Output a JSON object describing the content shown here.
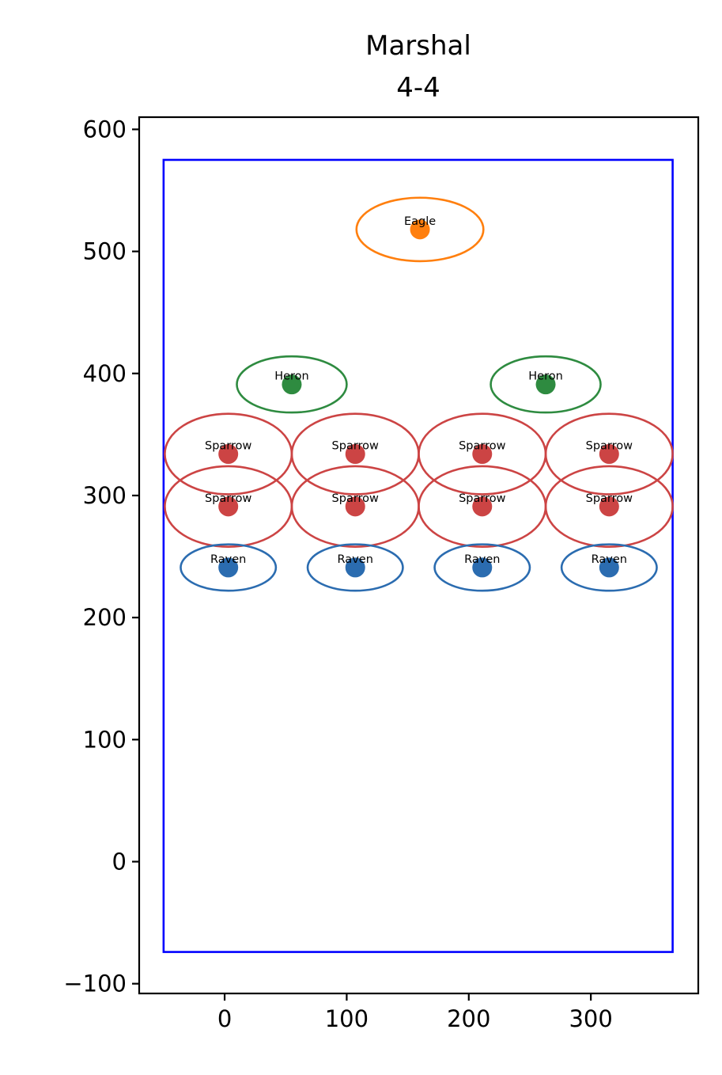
{
  "chart_data": {
    "type": "scatter",
    "title": "Marshal",
    "subtitle": "4-4",
    "xlabel": "",
    "ylabel": "",
    "xlim": [
      -70,
      388
    ],
    "ylim": [
      -108,
      610
    ],
    "x_ticks": [
      0,
      100,
      200,
      300
    ],
    "y_ticks": [
      -100,
      0,
      100,
      200,
      300,
      400,
      500,
      600
    ],
    "x_tick_labels": [
      "0",
      "100",
      "200",
      "300"
    ],
    "y_tick_labels": [
      "−100",
      "0",
      "100",
      "200",
      "300",
      "400",
      "500",
      "600"
    ],
    "grid": false,
    "field_rect": {
      "x0": -50,
      "x1": 367,
      "y0": -74,
      "y1": 575,
      "color": "#0000ff"
    },
    "colors": {
      "Eagle": "#ff7f0e",
      "Heron": "#2e8b40",
      "Sparrow": "#cc4444",
      "Raven": "#2b6cb0"
    },
    "points": [
      {
        "label": "Eagle",
        "x": 160,
        "y": 518,
        "rx": 52,
        "ry": 26
      },
      {
        "label": "Heron",
        "x": 55,
        "y": 391,
        "rx": 45,
        "ry": 23
      },
      {
        "label": "Heron",
        "x": 263,
        "y": 391,
        "rx": 45,
        "ry": 23
      },
      {
        "label": "Sparrow",
        "x": 3,
        "y": 334,
        "rx": 52,
        "ry": 33
      },
      {
        "label": "Sparrow",
        "x": 107,
        "y": 334,
        "rx": 52,
        "ry": 33
      },
      {
        "label": "Sparrow",
        "x": 211,
        "y": 334,
        "rx": 52,
        "ry": 33
      },
      {
        "label": "Sparrow",
        "x": 315,
        "y": 334,
        "rx": 52,
        "ry": 33
      },
      {
        "label": "Sparrow",
        "x": 3,
        "y": 291,
        "rx": 52,
        "ry": 33
      },
      {
        "label": "Sparrow",
        "x": 107,
        "y": 291,
        "rx": 52,
        "ry": 33
      },
      {
        "label": "Sparrow",
        "x": 211,
        "y": 291,
        "rx": 52,
        "ry": 33
      },
      {
        "label": "Sparrow",
        "x": 315,
        "y": 291,
        "rx": 52,
        "ry": 33
      },
      {
        "label": "Raven",
        "x": 3,
        "y": 241,
        "rx": 39,
        "ry": 19
      },
      {
        "label": "Raven",
        "x": 107,
        "y": 241,
        "rx": 39,
        "ry": 19
      },
      {
        "label": "Raven",
        "x": 211,
        "y": 241,
        "rx": 39,
        "ry": 19
      },
      {
        "label": "Raven",
        "x": 315,
        "y": 241,
        "rx": 39,
        "ry": 19
      }
    ]
  }
}
